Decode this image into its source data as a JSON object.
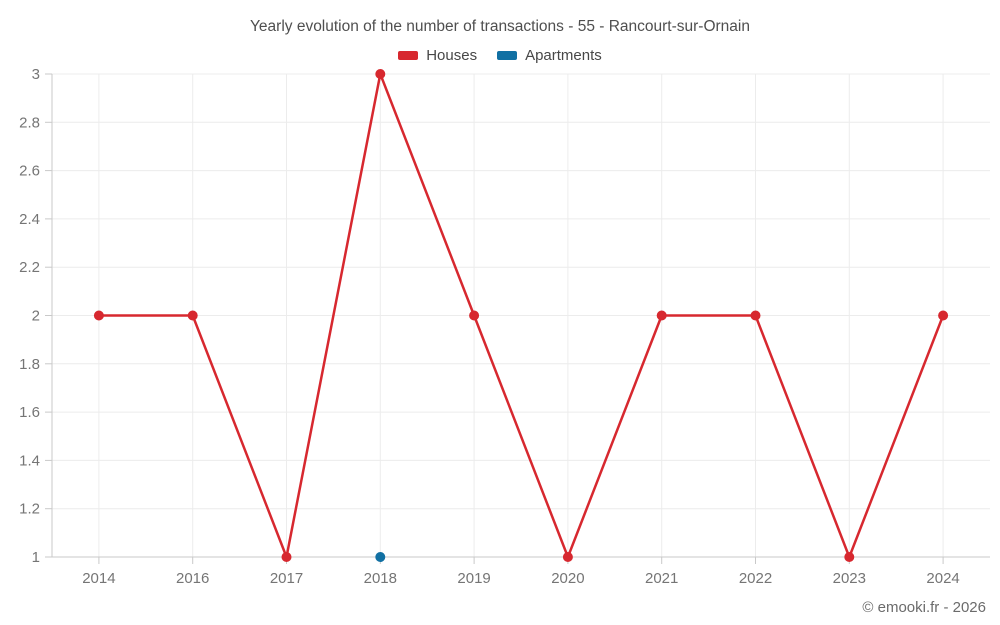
{
  "chart_data": {
    "type": "line",
    "title": "Yearly evolution of the number of transactions - 55 - Rancourt-sur-Ornain",
    "categories": [
      "2014",
      "2016",
      "2017",
      "2018",
      "2019",
      "2020",
      "2021",
      "2022",
      "2023",
      "2024"
    ],
    "series": [
      {
        "name": "Houses",
        "color": "#d7282f",
        "show_line": true,
        "values": [
          2,
          2,
          1,
          3,
          2,
          1,
          2,
          2,
          1,
          2
        ]
      },
      {
        "name": "Apartments",
        "color": "#1170a3",
        "show_line": false,
        "values": [
          null,
          null,
          null,
          1,
          null,
          null,
          null,
          null,
          null,
          null
        ]
      }
    ],
    "xlabel": "",
    "ylabel": "",
    "ylim": [
      1,
      3
    ],
    "ytick_step": 0.2,
    "ytick_labels": [
      "1",
      "1.2",
      "1.4",
      "1.6",
      "1.8",
      "2",
      "2.2",
      "2.4",
      "2.6",
      "2.8",
      "3"
    ],
    "grid": true,
    "legend_position": "top"
  },
  "footer": {
    "text": "© emooki.fr - 2026"
  },
  "colors": {
    "grid": "#ececec",
    "axis": "#c9c9c9",
    "tick": "#c9c9c9",
    "tick_label": "#757575",
    "title_text": "#4f4f4f",
    "legend_text": "#474747",
    "footer_text": "#6b6b6b"
  }
}
